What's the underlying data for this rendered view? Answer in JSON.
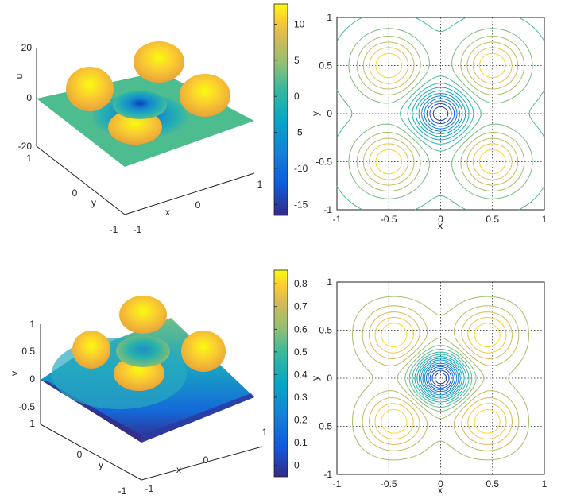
{
  "chart_data": [
    {
      "type": "surface",
      "zlabel": "u",
      "xlabel": "x",
      "ylabel": "y",
      "xticks": [
        "-1",
        "0",
        "1"
      ],
      "yticks": [
        "-1",
        "0",
        "1"
      ],
      "zticks": [
        "-20",
        "0",
        "20"
      ],
      "zlim": [
        -20,
        20
      ],
      "peaks": [
        {
          "x": -0.5,
          "y": -0.5,
          "z": 12
        },
        {
          "x": 0.5,
          "y": -0.5,
          "z": 12
        },
        {
          "x": -0.5,
          "y": 0.5,
          "z": 12
        },
        {
          "x": 0.5,
          "y": 0.5,
          "z": 12
        }
      ],
      "center_min": -16,
      "colormap": "parula",
      "colorbar": {
        "ticks": [
          "10",
          "5",
          "0",
          "-5",
          "-10",
          "-15"
        ],
        "min": -16.5,
        "max": 12.8
      }
    },
    {
      "type": "contour",
      "xlabel": "x",
      "ylabel": "y",
      "xticks": [
        "-1",
        "-0.5",
        "0",
        "0.5",
        "1"
      ],
      "yticks": [
        "1",
        "0.5",
        "0",
        "-0.5",
        "-1"
      ],
      "xlim": [
        -1,
        1
      ],
      "ylim": [
        -1,
        1
      ],
      "grid": true,
      "levels": [
        0.5,
        0.6,
        0.7,
        0.78,
        0.86,
        0.92,
        0.96
      ],
      "center_rings": 8
    },
    {
      "type": "surface",
      "zlabel": "v",
      "xlabel": "x",
      "ylabel": "y",
      "xticks": [
        "-1",
        "0",
        "1"
      ],
      "yticks": [
        "-1",
        "0",
        "1"
      ],
      "zticks": [
        "1",
        "0.5",
        "0",
        "-0.5"
      ],
      "zlim": [
        -0.5,
        1
      ],
      "peaks": [
        {
          "x": -0.5,
          "y": -0.5,
          "z": 0.85
        },
        {
          "x": 0.5,
          "y": -0.5,
          "z": 0.85
        },
        {
          "x": -0.5,
          "y": 0.5,
          "z": 0.85
        },
        {
          "x": 0.5,
          "y": 0.5,
          "z": 0.85
        }
      ],
      "center_min": 0.05,
      "colormap": "parula",
      "colorbar": {
        "ticks": [
          "0.8",
          "0.7",
          "0.6",
          "0.5",
          "0.4",
          "0.3",
          "0.2",
          "0.1",
          "0"
        ],
        "min": -0.05,
        "max": 0.86
      }
    },
    {
      "type": "contour",
      "xlabel": "x",
      "ylabel": "y",
      "xticks": [
        "-1",
        "-0.5",
        "0",
        "0.5",
        "1"
      ],
      "yticks": [
        "1",
        "0.5",
        "0",
        "-0.5",
        "-1"
      ],
      "xlim": [
        -1,
        1
      ],
      "ylim": [
        -1,
        1
      ],
      "grid": true,
      "levels": [
        0.1,
        0.2,
        0.3,
        0.4,
        0.5,
        0.6,
        0.7,
        0.78,
        0.86,
        0.92,
        0.96
      ],
      "center_rings": 8
    }
  ]
}
